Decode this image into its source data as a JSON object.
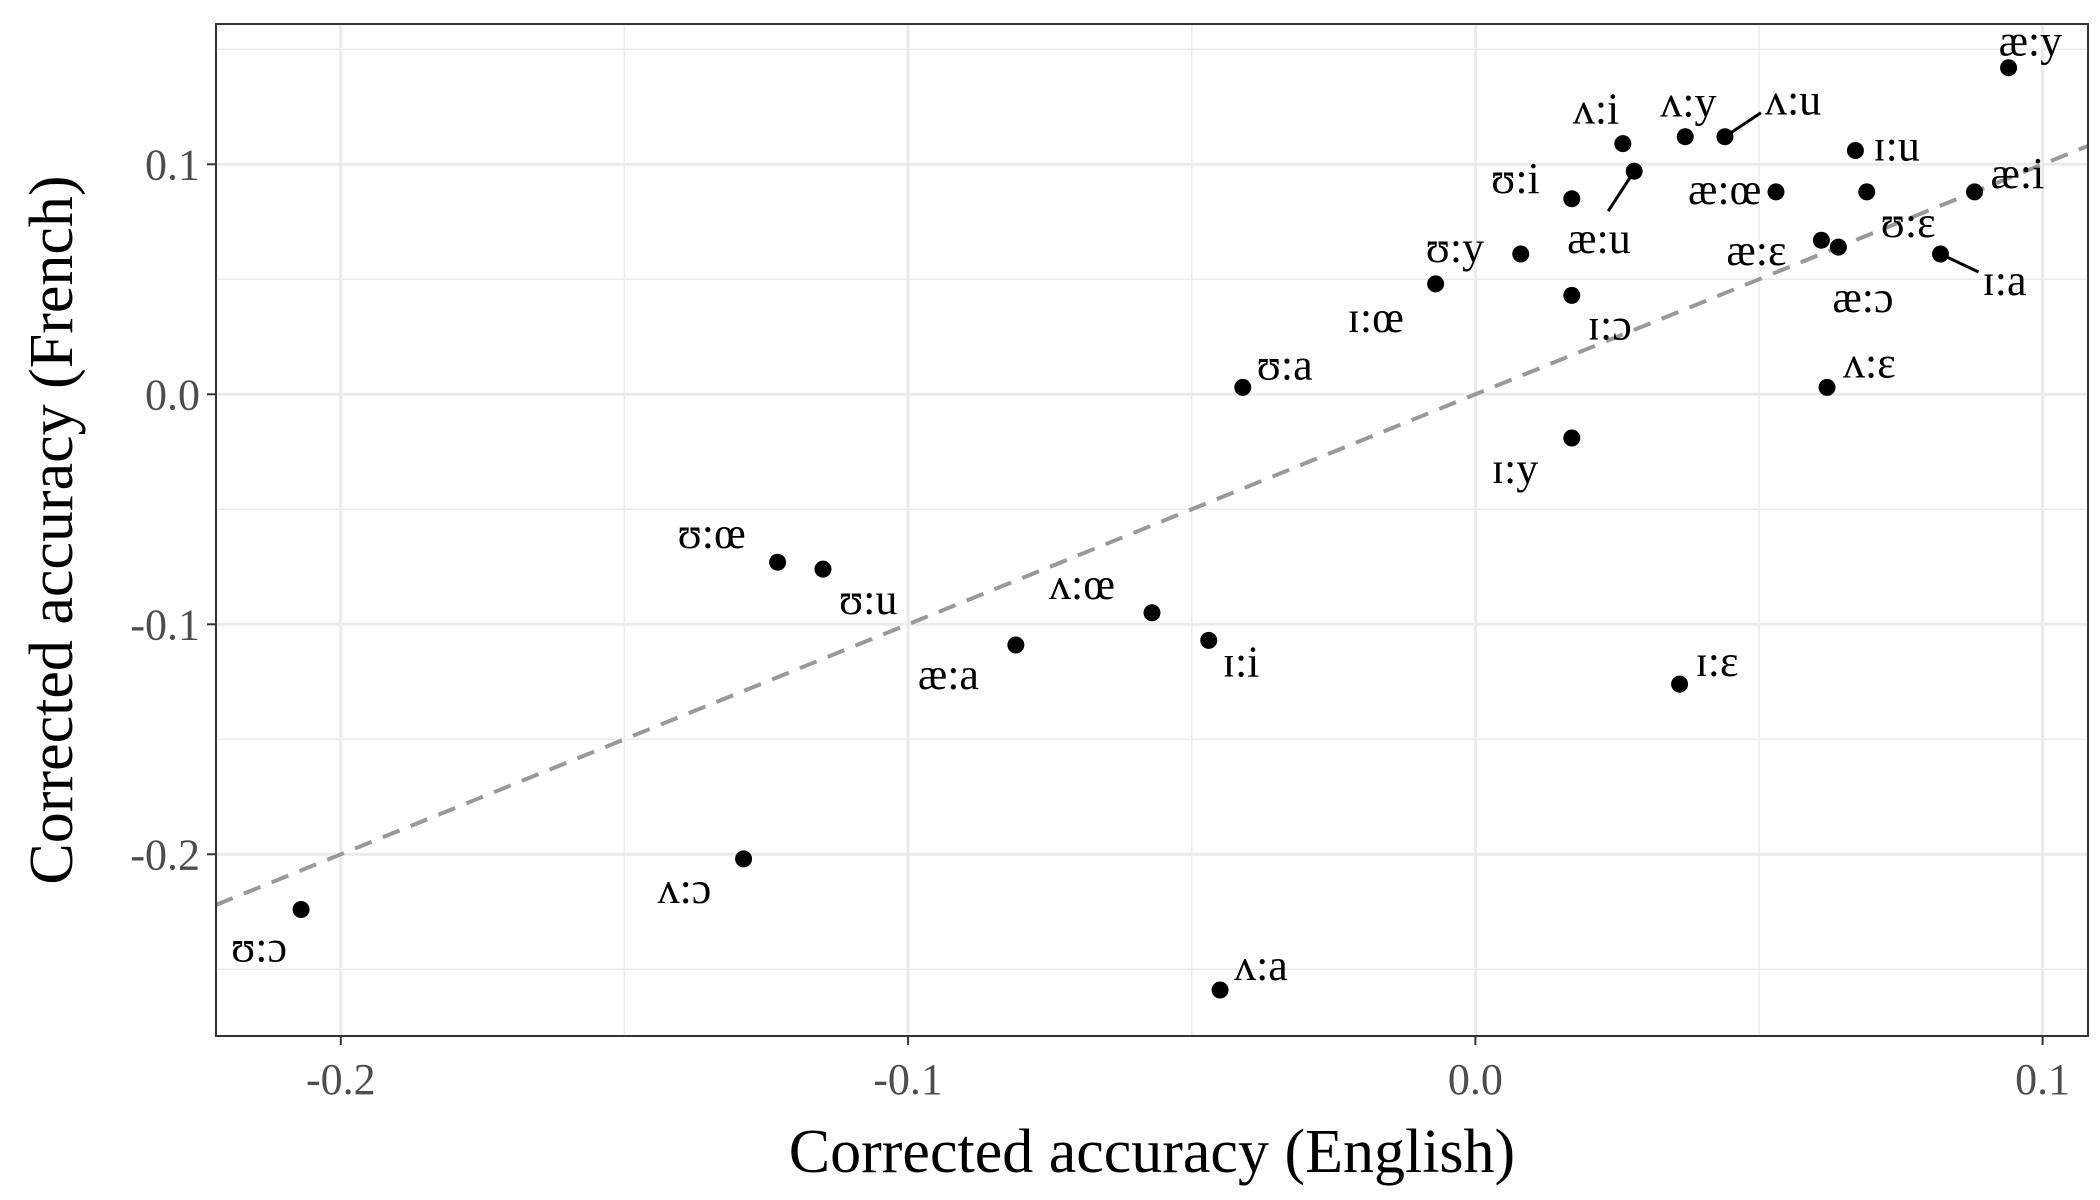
{
  "chart_data": {
    "type": "scatter",
    "xlabel": "Corrected accuracy (English)",
    "ylabel": "Corrected accuracy (French)",
    "xlim": [
      -0.222,
      0.108
    ],
    "ylim": [
      -0.279,
      0.161
    ],
    "x_ticks": [
      -0.2,
      -0.1,
      0.0,
      0.1
    ],
    "x_tick_labels": [
      "-0.2",
      "-0.1",
      "0.0",
      "0.1"
    ],
    "y_ticks": [
      -0.2,
      -0.1,
      0.0,
      0.1
    ],
    "y_tick_labels": [
      "-0.2",
      "-0.1",
      "0.0",
      "0.1"
    ],
    "grid": true,
    "reference_line": {
      "type": "identity",
      "style": "dashed",
      "color": "#999999"
    },
    "colors": {
      "points": "#000000",
      "grid": "#ebebeb",
      "panel_border": "#333333",
      "tick_text": "#4d4d4d"
    },
    "points": [
      {
        "label": "æ:y",
        "x": 0.094,
        "y": 0.142
      },
      {
        "label": "ʌ:i",
        "x": 0.026,
        "y": 0.109
      },
      {
        "label": "ʌ:y",
        "x": 0.037,
        "y": 0.112
      },
      {
        "label": "ʌ:u",
        "x": 0.044,
        "y": 0.112
      },
      {
        "label": "ɪ:u",
        "x": 0.067,
        "y": 0.106
      },
      {
        "label": "æ:i",
        "x": 0.088,
        "y": 0.088
      },
      {
        "label": "ʊ:i",
        "x": 0.017,
        "y": 0.085
      },
      {
        "label": "æ:u",
        "x": 0.028,
        "y": 0.097
      },
      {
        "label": "æ:œ",
        "x": 0.053,
        "y": 0.088
      },
      {
        "label": "ʊ:ɛ",
        "x": 0.069,
        "y": 0.088
      },
      {
        "label": "æ:ɛ",
        "x": 0.061,
        "y": 0.067
      },
      {
        "label": "æ:ɔ",
        "x": 0.064,
        "y": 0.064
      },
      {
        "label": "ɪ:a",
        "x": 0.082,
        "y": 0.061
      },
      {
        "label": "ʊ:y",
        "x": 0.008,
        "y": 0.061
      },
      {
        "label": "ɪ:œ",
        "x": -0.007,
        "y": 0.048
      },
      {
        "label": "ɪ:ɔ",
        "x": 0.017,
        "y": 0.043
      },
      {
        "label": "ʊ:a",
        "x": -0.041,
        "y": 0.003
      },
      {
        "label": "ʌ:ɛ",
        "x": 0.062,
        "y": 0.003
      },
      {
        "label": "ɪ:y",
        "x": 0.017,
        "y": -0.019
      },
      {
        "label": "ʊ:œ",
        "x": -0.123,
        "y": -0.073
      },
      {
        "label": "ʊ:u",
        "x": -0.115,
        "y": -0.076
      },
      {
        "label": "ʌ:œ",
        "x": -0.057,
        "y": -0.095
      },
      {
        "label": "ɪ:i",
        "x": -0.047,
        "y": -0.107
      },
      {
        "label": "æ:a",
        "x": -0.081,
        "y": -0.109
      },
      {
        "label": "ɪ:ɛ",
        "x": 0.036,
        "y": -0.126
      },
      {
        "label": "ʌ:ɔ",
        "x": -0.129,
        "y": -0.202
      },
      {
        "label": "ʊ:ɔ",
        "x": -0.207,
        "y": -0.224
      },
      {
        "label": "ʌ:a",
        "x": -0.045,
        "y": -0.259
      }
    ]
  }
}
